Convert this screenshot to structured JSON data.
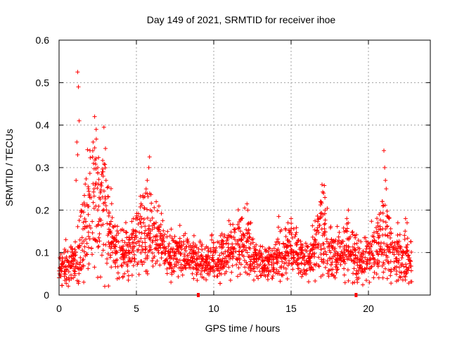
{
  "chart_data": {
    "type": "scatter",
    "title": "Day 149 of 2021, SRMTID for receiver ihoe",
    "xlabel": "GPS time / hours",
    "ylabel": "SRMTID / TECUs",
    "xlim": [
      0,
      24
    ],
    "ylim": [
      0,
      0.6
    ],
    "xticks": [
      0,
      5,
      10,
      15,
      20
    ],
    "xtick_labels": [
      "0",
      "5",
      "10",
      "15",
      "20"
    ],
    "yticks": [
      0,
      0.1,
      0.2,
      0.3,
      0.4,
      0.5,
      0.6
    ],
    "ytick_labels": [
      "0",
      "0.1",
      "0.2",
      "0.3",
      "0.4",
      "0.5",
      "0.6"
    ],
    "grid": true,
    "marker": "+",
    "color": "#ff0000",
    "axis_markers_x": [
      9.0,
      19.2
    ],
    "series": [
      {
        "name": "SRMTID",
        "envelope": [
          [
            0.0,
            0.06,
            0.02
          ],
          [
            0.3,
            0.07,
            0.025
          ],
          [
            0.6,
            0.07,
            0.025
          ],
          [
            0.9,
            0.08,
            0.025
          ],
          [
            1.2,
            0.09,
            0.04
          ],
          [
            1.5,
            0.13,
            0.05
          ],
          [
            1.8,
            0.16,
            0.06
          ],
          [
            2.1,
            0.2,
            0.08
          ],
          [
            2.4,
            0.21,
            0.08
          ],
          [
            2.7,
            0.2,
            0.07
          ],
          [
            3.0,
            0.19,
            0.07
          ],
          [
            3.3,
            0.14,
            0.05
          ],
          [
            3.6,
            0.11,
            0.03
          ],
          [
            3.9,
            0.1,
            0.03
          ],
          [
            4.2,
            0.1,
            0.03
          ],
          [
            4.5,
            0.11,
            0.03
          ],
          [
            4.8,
            0.12,
            0.03
          ],
          [
            5.1,
            0.14,
            0.04
          ],
          [
            5.4,
            0.15,
            0.05
          ],
          [
            5.7,
            0.15,
            0.05
          ],
          [
            6.0,
            0.14,
            0.04
          ],
          [
            6.3,
            0.13,
            0.04
          ],
          [
            6.6,
            0.12,
            0.03
          ],
          [
            6.9,
            0.1,
            0.03
          ],
          [
            7.2,
            0.09,
            0.025
          ],
          [
            7.5,
            0.09,
            0.025
          ],
          [
            7.8,
            0.09,
            0.025
          ],
          [
            8.1,
            0.09,
            0.025
          ],
          [
            8.4,
            0.09,
            0.025
          ],
          [
            8.7,
            0.09,
            0.025
          ],
          [
            9.0,
            0.08,
            0.02
          ],
          [
            9.3,
            0.08,
            0.02
          ],
          [
            9.6,
            0.08,
            0.02
          ],
          [
            9.9,
            0.08,
            0.025
          ],
          [
            10.2,
            0.08,
            0.025
          ],
          [
            10.5,
            0.09,
            0.025
          ],
          [
            10.8,
            0.1,
            0.03
          ],
          [
            11.1,
            0.1,
            0.03
          ],
          [
            11.4,
            0.11,
            0.03
          ],
          [
            11.7,
            0.12,
            0.035
          ],
          [
            12.0,
            0.13,
            0.04
          ],
          [
            12.3,
            0.12,
            0.035
          ],
          [
            12.6,
            0.09,
            0.025
          ],
          [
            12.9,
            0.08,
            0.02
          ],
          [
            13.2,
            0.07,
            0.02
          ],
          [
            13.5,
            0.08,
            0.02
          ],
          [
            13.8,
            0.09,
            0.025
          ],
          [
            14.1,
            0.09,
            0.025
          ],
          [
            14.4,
            0.1,
            0.03
          ],
          [
            14.7,
            0.11,
            0.03
          ],
          [
            15.0,
            0.11,
            0.03
          ],
          [
            15.3,
            0.1,
            0.03
          ],
          [
            15.6,
            0.09,
            0.025
          ],
          [
            15.9,
            0.08,
            0.025
          ],
          [
            16.2,
            0.08,
            0.02
          ],
          [
            16.5,
            0.1,
            0.03
          ],
          [
            16.8,
            0.13,
            0.04
          ],
          [
            17.1,
            0.14,
            0.05
          ],
          [
            17.4,
            0.11,
            0.04
          ],
          [
            17.7,
            0.09,
            0.03
          ],
          [
            18.0,
            0.09,
            0.03
          ],
          [
            18.3,
            0.1,
            0.03
          ],
          [
            18.6,
            0.11,
            0.035
          ],
          [
            18.9,
            0.11,
            0.035
          ],
          [
            19.2,
            0.09,
            0.03
          ],
          [
            19.5,
            0.08,
            0.025
          ],
          [
            19.8,
            0.09,
            0.025
          ],
          [
            20.1,
            0.1,
            0.03
          ],
          [
            20.4,
            0.11,
            0.035
          ],
          [
            20.7,
            0.12,
            0.04
          ],
          [
            21.0,
            0.13,
            0.05
          ],
          [
            21.3,
            0.12,
            0.045
          ],
          [
            21.6,
            0.09,
            0.03
          ],
          [
            21.9,
            0.08,
            0.025
          ],
          [
            22.2,
            0.08,
            0.025
          ],
          [
            22.5,
            0.1,
            0.03
          ],
          [
            22.8,
            0.09,
            0.03
          ]
        ],
        "peaks": [
          [
            1.2,
            0.525
          ],
          [
            1.25,
            0.49
          ],
          [
            1.3,
            0.41
          ],
          [
            1.15,
            0.36
          ],
          [
            1.2,
            0.33
          ],
          [
            1.1,
            0.27
          ],
          [
            2.3,
            0.42
          ],
          [
            2.4,
            0.39
          ],
          [
            2.2,
            0.36
          ],
          [
            2.0,
            0.34
          ],
          [
            2.5,
            0.3
          ],
          [
            2.8,
            0.29
          ],
          [
            2.9,
            0.395
          ],
          [
            3.0,
            0.345
          ],
          [
            2.85,
            0.28
          ],
          [
            2.7,
            0.26
          ],
          [
            1.9,
            0.25
          ],
          [
            3.4,
            0.215
          ],
          [
            5.85,
            0.325
          ],
          [
            5.8,
            0.3
          ],
          [
            5.7,
            0.27
          ],
          [
            5.6,
            0.24
          ],
          [
            5.3,
            0.215
          ],
          [
            5.9,
            0.2
          ],
          [
            6.7,
            0.175
          ],
          [
            6.4,
            0.16
          ],
          [
            12.0,
            0.205
          ],
          [
            11.8,
            0.18
          ],
          [
            12.2,
            0.2
          ],
          [
            12.4,
            0.17
          ],
          [
            14.2,
            0.185
          ],
          [
            15.0,
            0.18
          ],
          [
            14.8,
            0.17
          ],
          [
            17.0,
            0.26
          ],
          [
            17.1,
            0.24
          ],
          [
            16.9,
            0.22
          ],
          [
            17.2,
            0.2
          ],
          [
            16.8,
            0.18
          ],
          [
            18.6,
            0.18
          ],
          [
            18.7,
            0.2
          ],
          [
            21.0,
            0.34
          ],
          [
            21.05,
            0.3
          ],
          [
            21.1,
            0.27
          ],
          [
            21.15,
            0.25
          ],
          [
            20.9,
            0.22
          ],
          [
            20.7,
            0.19
          ],
          [
            21.9,
            0.17
          ],
          [
            22.4,
            0.18
          ],
          [
            22.5,
            0.17
          ]
        ]
      }
    ]
  }
}
